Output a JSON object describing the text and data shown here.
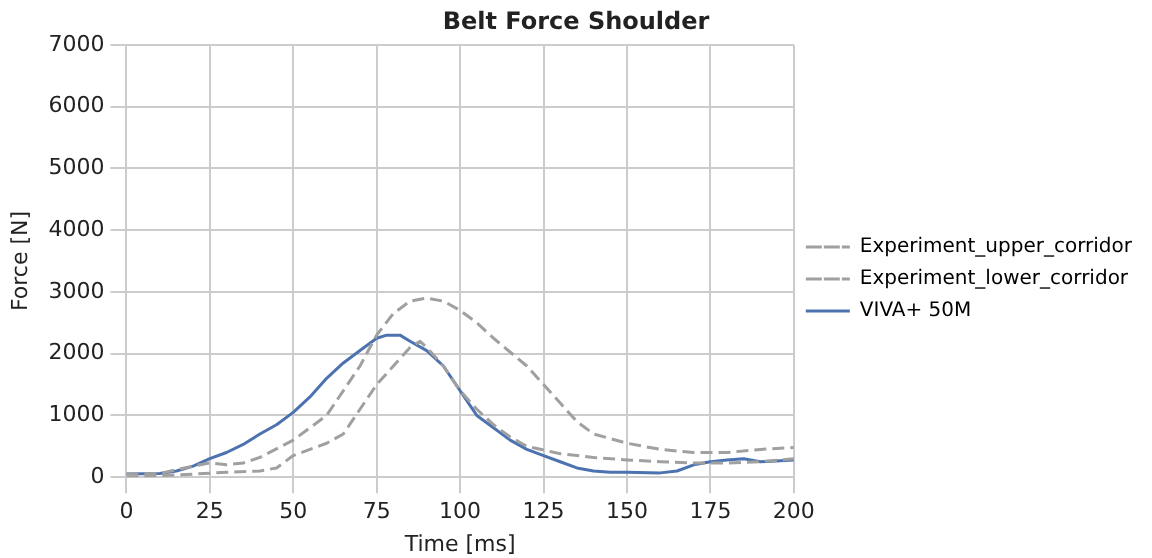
{
  "chart_data": {
    "type": "line",
    "title": "Belt Force Shoulder",
    "xlabel": "Time [ms]",
    "ylabel": "Force [N]",
    "xlim": [
      0,
      200
    ],
    "xticks": [
      0,
      25,
      50,
      75,
      100,
      125,
      150,
      175,
      200
    ],
    "ylim": [
      0,
      7000
    ],
    "yticks": [
      0,
      1000,
      2000,
      3000,
      4000,
      5000,
      6000,
      7000
    ],
    "grid": true,
    "legend": "right",
    "marker": "none",
    "series": [
      {
        "name": "Experiment_upper_corridor",
        "color": "#a0a0a0",
        "line_style": "dashed",
        "x": [
          0,
          10,
          20,
          25,
          30,
          35,
          40,
          50,
          60,
          70,
          75,
          80,
          85,
          90,
          95,
          100,
          105,
          110,
          120,
          125,
          130,
          135,
          140,
          150,
          160,
          170,
          180,
          190,
          200
        ],
        "values": [
          50,
          60,
          180,
          230,
          200,
          230,
          320,
          600,
          1000,
          1800,
          2300,
          2650,
          2850,
          2900,
          2850,
          2700,
          2500,
          2250,
          1800,
          1500,
          1200,
          900,
          700,
          550,
          450,
          400,
          400,
          450,
          480
        ]
      },
      {
        "name": "Experiment_lower_corridor",
        "color": "#a0a0a0",
        "line_style": "dashed",
        "x": [
          0,
          20,
          30,
          40,
          45,
          50,
          60,
          65,
          70,
          75,
          80,
          85,
          88,
          90,
          95,
          100,
          105,
          110,
          115,
          120,
          130,
          140,
          150,
          160,
          170,
          180,
          190,
          200
        ],
        "values": [
          0,
          50,
          80,
          100,
          150,
          350,
          550,
          700,
          1100,
          1500,
          1800,
          2100,
          2200,
          2100,
          1800,
          1400,
          1100,
          850,
          650,
          500,
          380,
          320,
          280,
          250,
          230,
          230,
          250,
          300
        ]
      },
      {
        "name": "VIVA+ 50M",
        "color": "#4c72b0",
        "line_style": "solid",
        "x": [
          0,
          10,
          15,
          20,
          25,
          30,
          35,
          40,
          45,
          50,
          55,
          60,
          65,
          70,
          75,
          78,
          82,
          85,
          90,
          95,
          100,
          105,
          110,
          115,
          120,
          125,
          130,
          135,
          140,
          145,
          150,
          160,
          165,
          170,
          175,
          180,
          185,
          190,
          200
        ],
        "values": [
          50,
          60,
          100,
          180,
          300,
          400,
          530,
          700,
          850,
          1050,
          1300,
          1600,
          1850,
          2050,
          2250,
          2300,
          2300,
          2200,
          2050,
          1800,
          1400,
          1000,
          800,
          600,
          450,
          350,
          250,
          150,
          100,
          80,
          80,
          70,
          100,
          200,
          250,
          280,
          300,
          250,
          280
        ]
      }
    ]
  }
}
